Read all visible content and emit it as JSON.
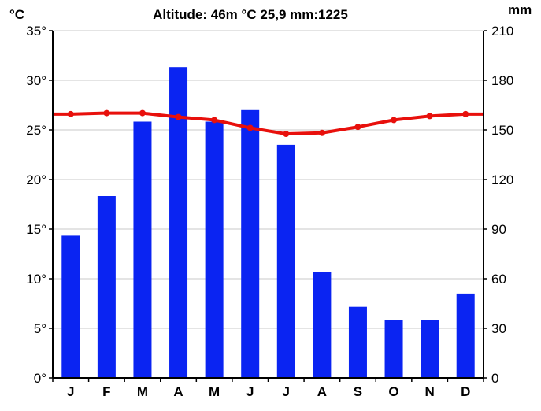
{
  "chart_data": {
    "type": "bar",
    "title": "Altitude: 46m  °C 25,9  mm:1225",
    "categories": [
      "J",
      "F",
      "M",
      "A",
      "M",
      "J",
      "J",
      "A",
      "S",
      "O",
      "N",
      "D"
    ],
    "left_axis": {
      "unit": "°C",
      "ylim": [
        0,
        35
      ],
      "ticks": [
        0,
        5,
        10,
        15,
        20,
        25,
        30,
        35
      ],
      "tick_labels": [
        "0°",
        "5°",
        "10°",
        "15°",
        "20°",
        "25°",
        "30°",
        "35°"
      ]
    },
    "right_axis": {
      "unit": "mm",
      "ylim": [
        0,
        210
      ],
      "ticks": [
        0,
        30,
        60,
        90,
        120,
        150,
        180,
        210
      ],
      "tick_labels": [
        "0",
        "30",
        "60",
        "90",
        "120",
        "150",
        "180",
        "210"
      ]
    },
    "series": [
      {
        "kind": "bar",
        "axis": "right",
        "color": "#0a24f2",
        "values": [
          86,
          110,
          155,
          188,
          155,
          162,
          141,
          64,
          43,
          35,
          35,
          51
        ]
      },
      {
        "kind": "line",
        "axis": "left",
        "color": "#e8100c",
        "values": [
          26.6,
          26.7,
          26.7,
          26.3,
          26.0,
          25.2,
          24.6,
          24.7,
          25.3,
          26.0,
          26.4,
          26.6
        ]
      }
    ],
    "grid": "horizontal",
    "legend": "none"
  }
}
